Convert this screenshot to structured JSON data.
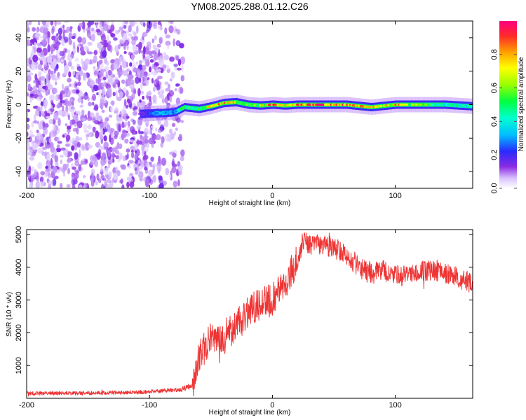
{
  "chart_data": [
    {
      "type": "heatmap",
      "title": "YM08.2025.288.01.12.C26",
      "xlabel": "Height of straight line (km)",
      "ylabel": "Frequency (Hz)",
      "xlim": [
        -200,
        163
      ],
      "ylim": [
        -50,
        50
      ],
      "xticks": [
        -200,
        -100,
        0,
        100
      ],
      "yticks": [
        -40,
        -20,
        0,
        20,
        40
      ],
      "x_tick_labels": [
        "-200",
        "-100",
        "0",
        "100"
      ],
      "y_tick_labels": [
        "-40",
        "-20",
        "0",
        "20",
        "40"
      ],
      "colorbar": {
        "label": "Normalized spectral amplitude",
        "range": [
          0,
          1
        ],
        "ticks": [
          0.0,
          0.2,
          0.4,
          0.6,
          0.8
        ],
        "tick_labels": [
          "0.0",
          "0.2",
          "0.4",
          "0.6",
          "0.8"
        ]
      },
      "noise_region_x": [
        -200,
        -73
      ],
      "ridge": {
        "x": [
          -108,
          -90,
          -80,
          -72,
          -60,
          -50,
          -40,
          -30,
          -20,
          -10,
          0,
          10,
          20,
          30,
          40,
          60,
          80,
          100,
          120,
          140,
          163
        ],
        "freq": [
          -5.5,
          -5,
          -4.5,
          -1.5,
          -2.5,
          -1,
          1,
          1.5,
          0,
          -0.5,
          0,
          -0.5,
          0,
          0,
          0,
          0,
          -1.5,
          0,
          0,
          0,
          -1
        ],
        "amplitude": [
          0.15,
          0.35,
          0.3,
          0.6,
          0.5,
          0.75,
          0.85,
          0.7,
          0.55,
          0.65,
          0.9,
          0.7,
          0.8,
          0.95,
          1.0,
          0.85,
          0.75,
          0.8,
          0.6,
          0.45,
          0.45
        ]
      }
    },
    {
      "type": "line",
      "title": "",
      "xlabel": "Height of straight line (km)",
      "ylabel": "SNR (10 * v/v)",
      "xlim": [
        -200,
        163
      ],
      "ylim": [
        0,
        5150
      ],
      "xticks": [
        -200,
        -100,
        0,
        100
      ],
      "yticks": [
        1000,
        2000,
        3000,
        4000,
        5000
      ],
      "x_tick_labels": [
        "-200",
        "-100",
        "0",
        "100"
      ],
      "y_tick_labels": [
        "1000",
        "2000",
        "3000",
        "4000",
        "5000"
      ],
      "color": "#ee3333",
      "trend": {
        "x": [
          -200,
          -150,
          -110,
          -90,
          -75,
          -65,
          -60,
          -50,
          -40,
          -30,
          -20,
          -10,
          0,
          10,
          20,
          25,
          30,
          40,
          50,
          60,
          70,
          80,
          90,
          100,
          110,
          120,
          130,
          140,
          150,
          163
        ],
        "snr": [
          150,
          160,
          180,
          230,
          260,
          400,
          1300,
          1800,
          1900,
          2200,
          2600,
          2900,
          3000,
          3500,
          4200,
          4800,
          4700,
          4700,
          4600,
          4400,
          4000,
          3800,
          3900,
          3800,
          3700,
          3900,
          3900,
          3800,
          3700,
          3500
        ]
      }
    }
  ]
}
